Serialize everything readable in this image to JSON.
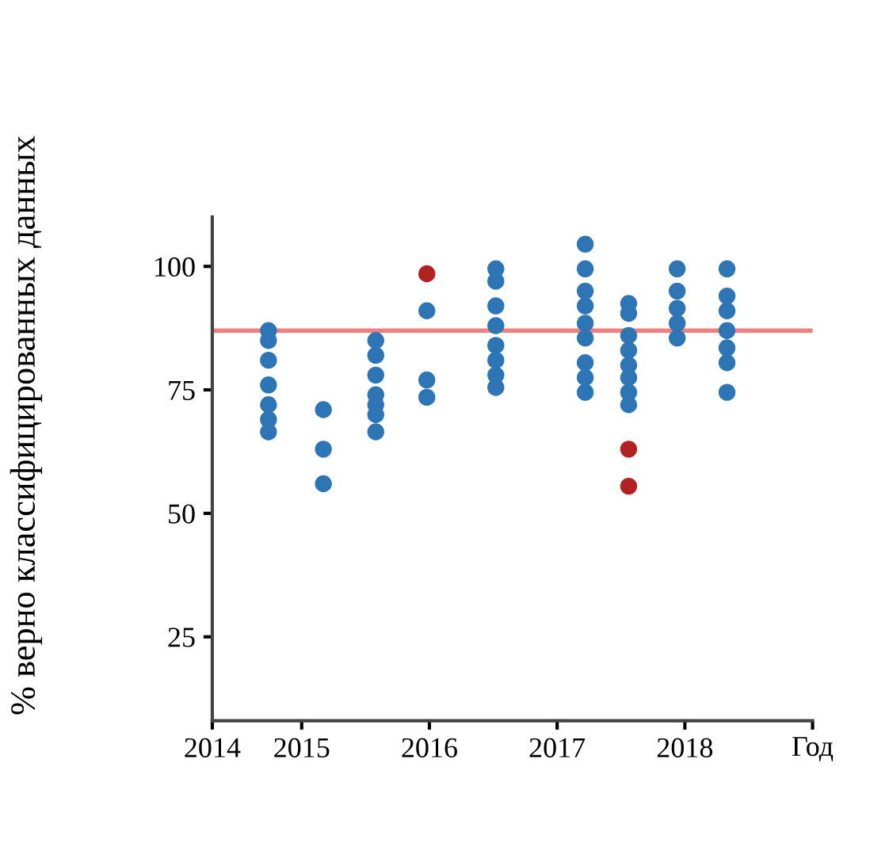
{
  "chart_data": {
    "type": "scatter",
    "ylabel": "% верно классифицированных данных",
    "xlabel": "Год",
    "series": [
      {
        "color": "#2e75b6",
        "x": [
          2014.74,
          2014.74,
          2014.74,
          2014.74,
          2014.74,
          2014.74,
          2014.74,
          2015.17,
          2015.17,
          2015.17,
          2015.58,
          2015.58,
          2015.58,
          2015.58,
          2015.58,
          2015.58,
          2015.58,
          2015.98,
          2015.98,
          2015.98,
          2016.52,
          2016.52,
          2016.52,
          2016.52,
          2016.52,
          2016.52,
          2016.52,
          2016.52,
          2017.22,
          2017.22,
          2017.22,
          2017.22,
          2017.22,
          2017.22,
          2017.22,
          2017.22,
          2017.22,
          2017.56,
          2017.56,
          2017.56,
          2017.56,
          2017.56,
          2017.56,
          2017.56,
          2017.56,
          2017.94,
          2017.94,
          2017.94,
          2017.94,
          2017.94,
          2018.33,
          2018.33,
          2018.33,
          2018.33,
          2018.33,
          2018.33,
          2018.33
        ],
        "values": [
          87,
          85,
          81,
          76,
          72,
          69,
          66.5,
          71,
          63,
          56,
          85,
          82,
          78,
          74,
          72,
          70,
          66.5,
          91,
          77,
          73.5,
          99.5,
          97,
          92,
          88,
          84,
          81,
          78,
          75.5,
          104.5,
          99.5,
          95,
          92,
          88.5,
          85.5,
          80.5,
          77.5,
          74.5,
          92.5,
          90.5,
          86,
          83,
          80,
          77.5,
          74.5,
          72,
          99.5,
          95,
          91.5,
          88.5,
          85.5,
          99.5,
          94,
          91,
          87,
          83.5,
          80.5,
          74.5
        ]
      },
      {
        "color": "#b22222",
        "x": [
          2015.98,
          2017.56,
          2017.56
        ],
        "values": [
          98.5,
          63,
          55.5
        ]
      }
    ],
    "ref_lines": [
      {
        "axis": "y",
        "value": 87,
        "color": "#f08080"
      }
    ],
    "marker": "circle",
    "xlim": [
      2014.3,
      2019
    ],
    "xticks": [
      {
        "value": 2014.3,
        "label": "2014"
      },
      2015,
      2016,
      2017,
      2018,
      {
        "value": 2019,
        "label": null
      }
    ],
    "ylim": [
      8,
      110
    ],
    "yticks": [
      25,
      50,
      75,
      100
    ],
    "grid": false,
    "legend": false
  }
}
